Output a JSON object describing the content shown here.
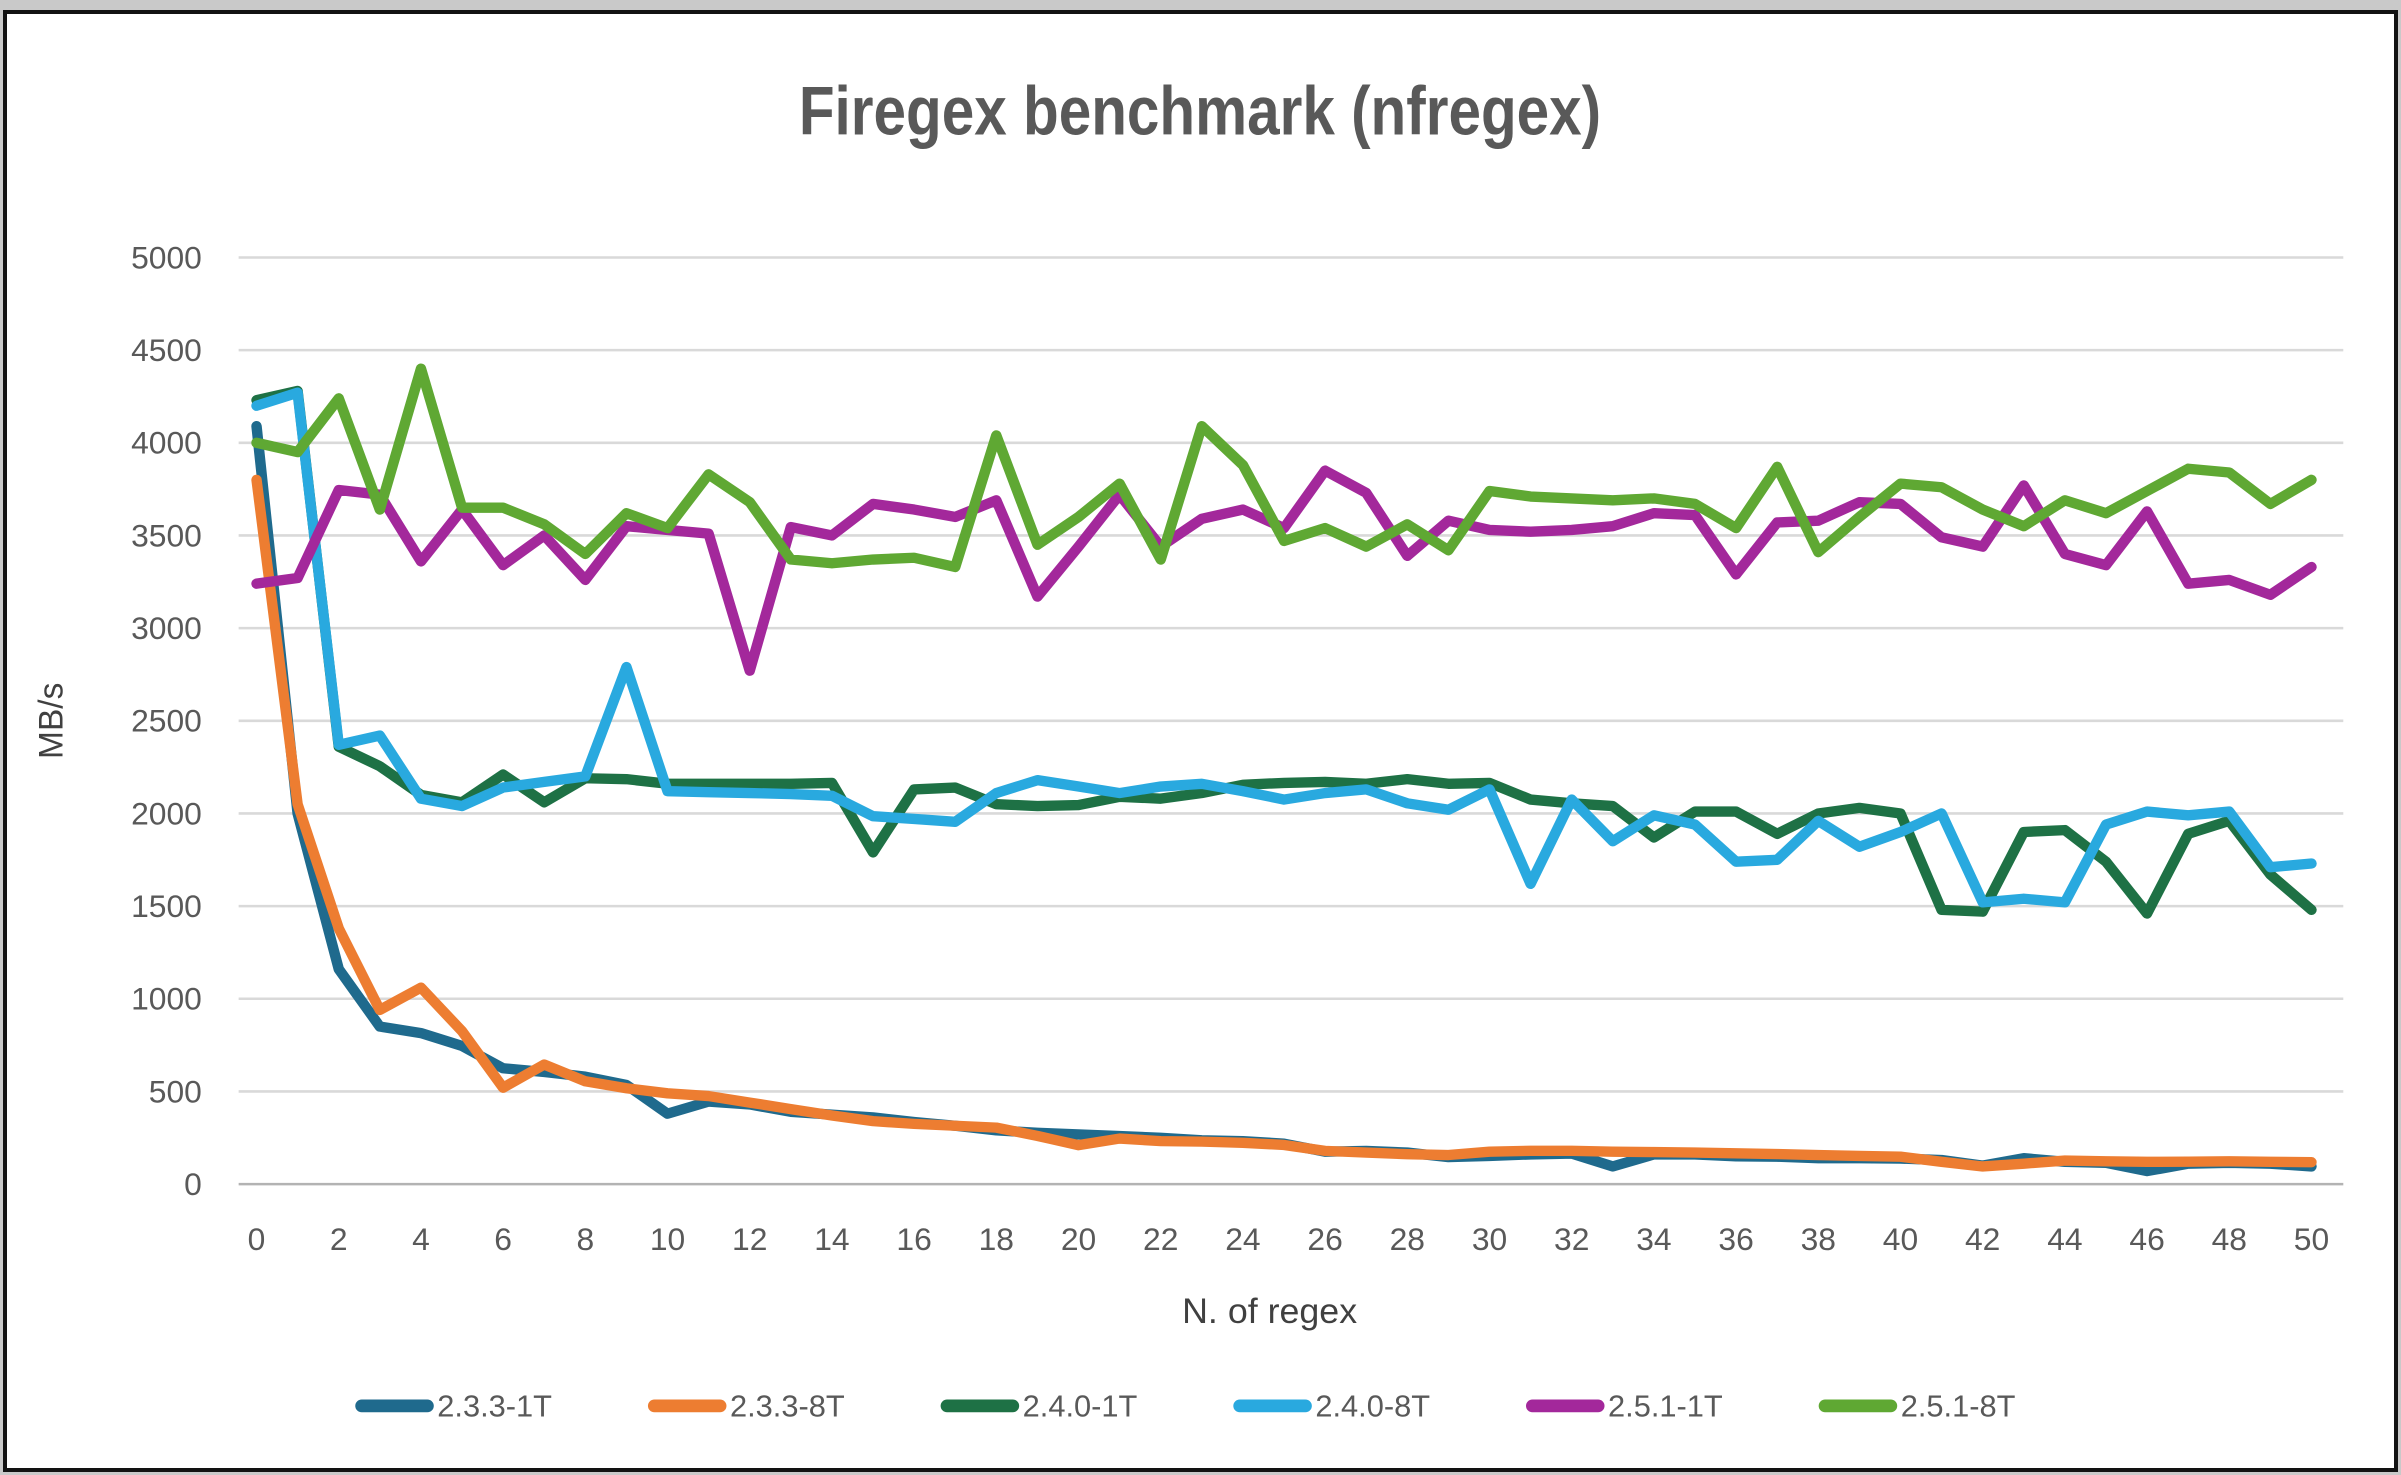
{
  "chart_data": {
    "type": "line",
    "title": "Firegex benchmark (nfregex)",
    "xlabel": "N. of regex",
    "ylabel": "MB/s",
    "ylim": [
      0,
      5000
    ],
    "y_ticks": [
      0,
      500,
      1000,
      1500,
      2000,
      2500,
      3000,
      3500,
      4000,
      4500,
      5000
    ],
    "x_ticks": [
      0,
      2,
      4,
      6,
      8,
      10,
      12,
      14,
      16,
      18,
      20,
      22,
      24,
      26,
      28,
      30,
      32,
      34,
      36,
      38,
      40,
      42,
      44,
      46,
      48,
      50
    ],
    "x": [
      0,
      1,
      2,
      3,
      4,
      5,
      6,
      7,
      8,
      9,
      10,
      11,
      12,
      13,
      14,
      15,
      16,
      17,
      18,
      19,
      20,
      21,
      22,
      23,
      24,
      25,
      26,
      27,
      28,
      29,
      30,
      31,
      32,
      33,
      34,
      35,
      36,
      37,
      38,
      39,
      40,
      41,
      42,
      43,
      44,
      45,
      46,
      47,
      48,
      49,
      50
    ],
    "grid": "horizontal",
    "legend_position": "bottom",
    "colors": {
      "grid": "#d9d9d9",
      "zero_line": "#b3b3b3",
      "tick_text": "#595959",
      "axis_title_text": "#404040",
      "title_text": "#595959"
    },
    "series": [
      {
        "name": "2.3.3-1T",
        "color": "#1f6a8d",
        "values": [
          4090,
          2000,
          1160,
          850,
          815,
          745,
          625,
          605,
          580,
          535,
          380,
          445,
          430,
          390,
          375,
          360,
          335,
          315,
          290,
          277,
          268,
          259,
          250,
          236,
          232,
          218,
          175,
          179,
          170,
          146,
          152,
          160,
          165,
          95,
          160,
          160,
          150,
          148,
          140,
          140,
          138,
          130,
          100,
          140,
          120,
          115,
          70,
          110,
          115,
          110,
          95
        ]
      },
      {
        "name": "2.3.3-8T",
        "color": "#ed7d31",
        "values": [
          3800,
          2050,
          1380,
          940,
          1060,
          825,
          520,
          645,
          555,
          517,
          490,
          475,
          440,
          405,
          370,
          340,
          325,
          315,
          305,
          260,
          210,
          246,
          232,
          229,
          223,
          211,
          179,
          170,
          161,
          157,
          175,
          180,
          180,
          175,
          173,
          170,
          166,
          162,
          157,
          152,
          148,
          120,
          95,
          110,
          127,
          123,
          120,
          121,
          123,
          120,
          118
        ]
      },
      {
        "name": "2.4.0-1T",
        "color": "#1e7145",
        "values": [
          4230,
          4280,
          2360,
          2255,
          2100,
          2060,
          2210,
          2060,
          2190,
          2185,
          2160,
          2160,
          2160,
          2160,
          2165,
          1790,
          2130,
          2140,
          2050,
          2040,
          2045,
          2090,
          2080,
          2110,
          2155,
          2165,
          2170,
          2160,
          2185,
          2160,
          2165,
          2075,
          2055,
          2040,
          1870,
          2010,
          2010,
          1890,
          2000,
          2030,
          2000,
          1480,
          1470,
          1900,
          1910,
          1740,
          1460,
          1890,
          1960,
          1670,
          1480
        ]
      },
      {
        "name": "2.4.0-8T",
        "color": "#29a9df",
        "values": [
          4200,
          4270,
          2370,
          2420,
          2080,
          2040,
          2140,
          2170,
          2200,
          2790,
          2120,
          2115,
          2110,
          2105,
          2095,
          1985,
          1970,
          1955,
          2110,
          2180,
          2145,
          2110,
          2145,
          2160,
          2120,
          2075,
          2110,
          2130,
          2055,
          2020,
          2130,
          1620,
          2075,
          1850,
          1990,
          1940,
          1740,
          1750,
          1960,
          1820,
          1900,
          2000,
          1520,
          1540,
          1520,
          1940,
          2010,
          1990,
          2010,
          1710,
          1730
        ]
      },
      {
        "name": "2.5.1-1T",
        "color": "#a3289b",
        "values": [
          3240,
          3270,
          3745,
          3720,
          3360,
          3640,
          3340,
          3500,
          3260,
          3550,
          3530,
          3510,
          2770,
          3545,
          3500,
          3670,
          3640,
          3600,
          3690,
          3170,
          3440,
          3720,
          3440,
          3590,
          3640,
          3540,
          3850,
          3730,
          3390,
          3580,
          3530,
          3520,
          3530,
          3550,
          3620,
          3610,
          3290,
          3570,
          3580,
          3680,
          3670,
          3490,
          3440,
          3770,
          3400,
          3340,
          3630,
          3240,
          3260,
          3180,
          3330
        ]
      },
      {
        "name": "2.5.1-8T",
        "color": "#5fa833",
        "values": [
          4000,
          3950,
          4240,
          3640,
          4400,
          3650,
          3650,
          3560,
          3400,
          3620,
          3540,
          3830,
          3680,
          3370,
          3350,
          3370,
          3380,
          3330,
          4040,
          3450,
          3600,
          3780,
          3370,
          4090,
          3880,
          3470,
          3540,
          3440,
          3560,
          3420,
          3740,
          3710,
          3700,
          3690,
          3700,
          3670,
          3540,
          3870,
          3410,
          3600,
          3780,
          3760,
          3640,
          3550,
          3690,
          3620,
          3740,
          3860,
          3840,
          3670,
          3800
        ]
      }
    ]
  }
}
